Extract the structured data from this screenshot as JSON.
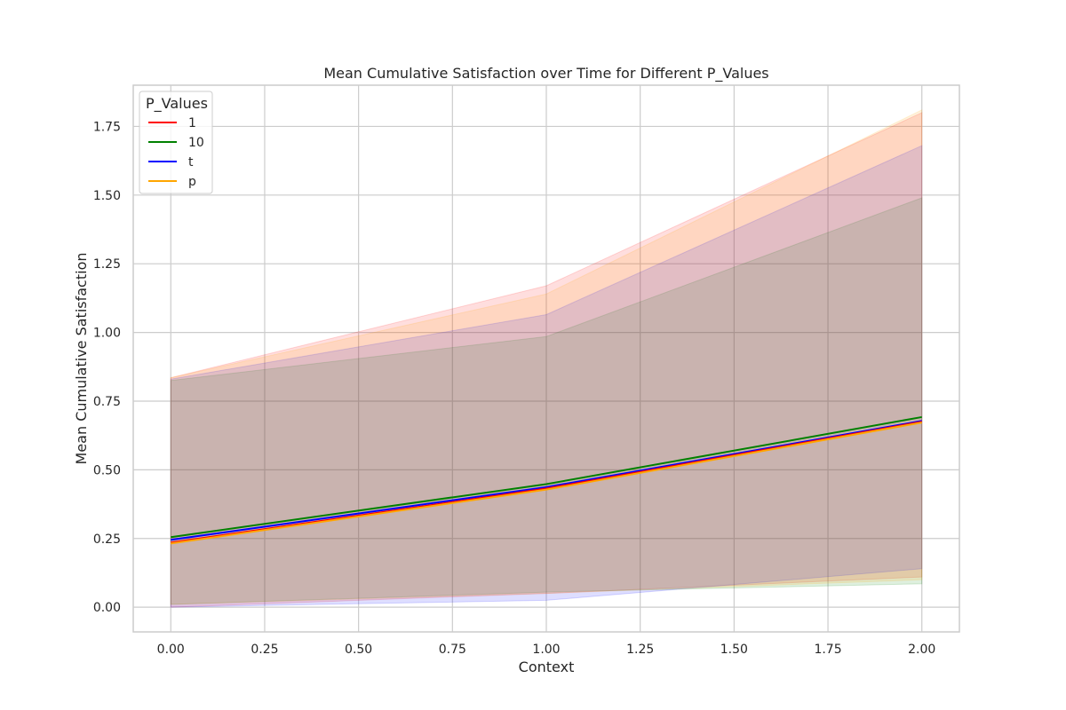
{
  "chart_data": {
    "type": "line",
    "title": "Mean Cumulative Satisfaction over Time for Different P_Values",
    "xlabel": "Context",
    "ylabel": "Mean Cumulative Satisfaction",
    "xlim": [
      -0.1,
      2.1
    ],
    "ylim": [
      -0.09,
      1.9
    ],
    "x": [
      0,
      1,
      2
    ],
    "xticks": [
      0.0,
      0.25,
      0.5,
      0.75,
      1.0,
      1.25,
      1.5,
      1.75,
      2.0
    ],
    "xtick_labels": [
      "0.00",
      "0.25",
      "0.50",
      "0.75",
      "1.00",
      "1.25",
      "1.50",
      "1.75",
      "2.00"
    ],
    "yticks": [
      0.0,
      0.25,
      0.5,
      0.75,
      1.0,
      1.25,
      1.5,
      1.75
    ],
    "ytick_labels": [
      "0.00",
      "0.25",
      "0.50",
      "0.75",
      "1.00",
      "1.25",
      "1.50",
      "1.75"
    ],
    "grid": true,
    "legend": {
      "title": "P_Values",
      "placement": "top-left"
    },
    "series": [
      {
        "name": "1",
        "color": "#ff0000",
        "values": [
          0.235,
          0.432,
          0.675
        ],
        "ci_lower": [
          0.0,
          0.05,
          0.11
        ],
        "ci_upper": [
          0.835,
          1.17,
          1.8
        ]
      },
      {
        "name": "10",
        "color": "#008000",
        "values": [
          0.255,
          0.448,
          0.692
        ],
        "ci_lower": [
          0.01,
          0.055,
          0.085
        ],
        "ci_upper": [
          0.825,
          0.985,
          1.49
        ]
      },
      {
        "name": "t",
        "color": "#0000ff",
        "values": [
          0.245,
          0.437,
          0.678
        ],
        "ci_lower": [
          0.0,
          0.025,
          0.14
        ],
        "ci_upper": [
          0.83,
          1.065,
          1.68
        ]
      },
      {
        "name": "p",
        "color": "#ffa500",
        "values": [
          0.232,
          0.428,
          0.672
        ],
        "ci_lower": [
          0.01,
          0.05,
          0.1
        ],
        "ci_upper": [
          0.835,
          1.14,
          1.81
        ]
      }
    ]
  }
}
